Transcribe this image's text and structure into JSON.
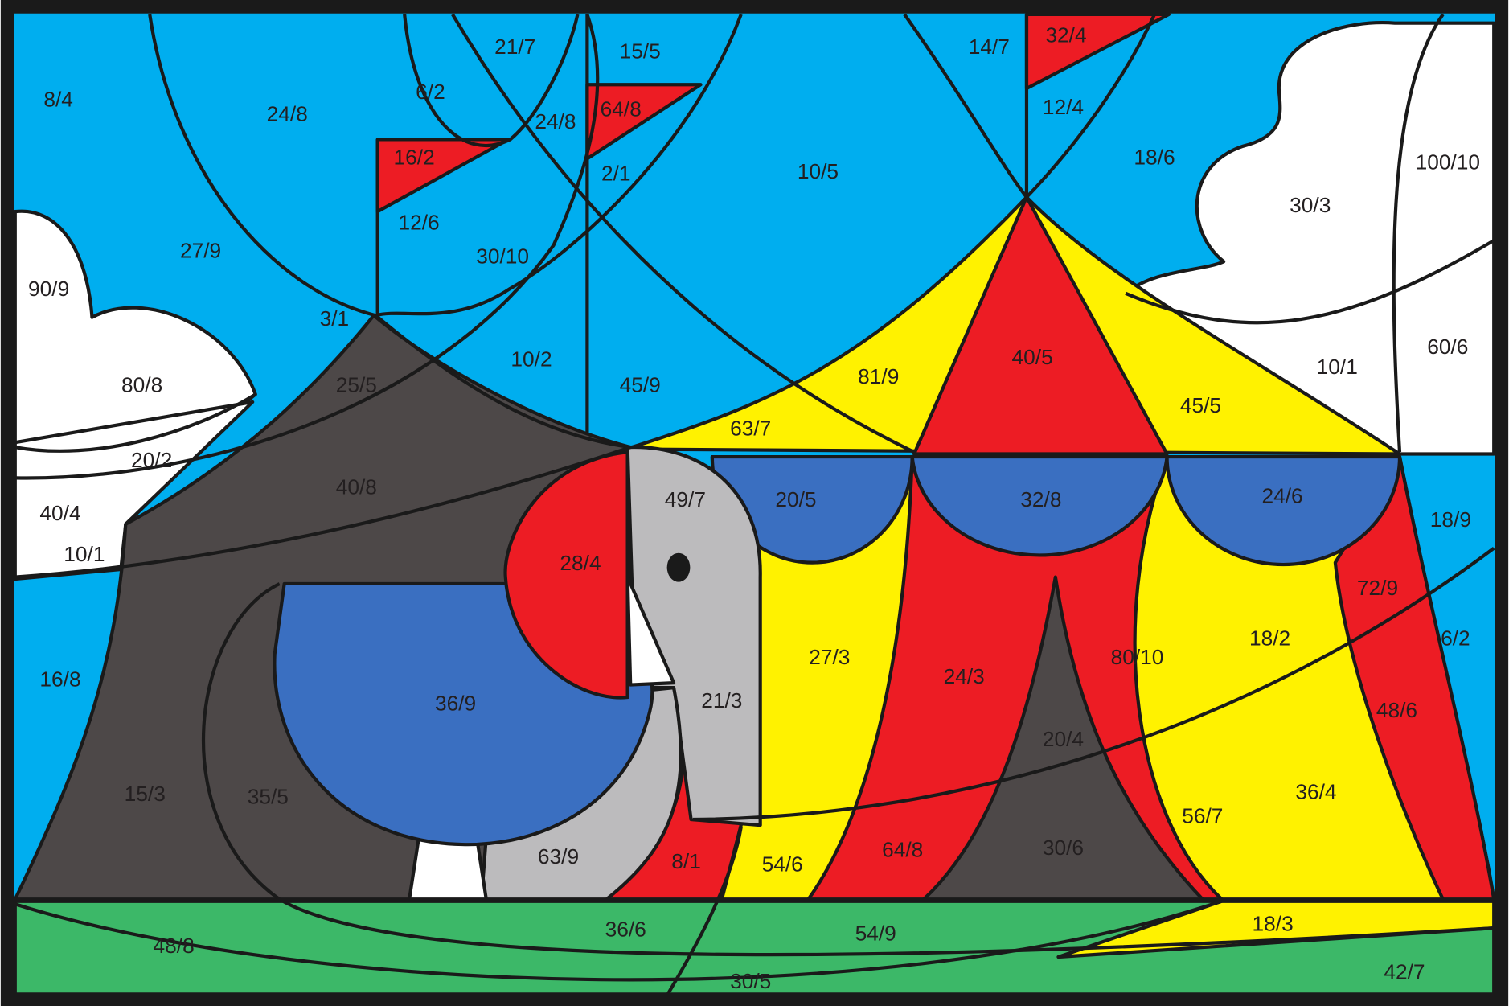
{
  "labels": [
    "8/4",
    "24/8",
    "6/2",
    "21/7",
    "15/5",
    "14/7",
    "32/4",
    "12/4",
    "24/8",
    "64/8",
    "16/2",
    "18/6",
    "100/10",
    "10/5",
    "2/1",
    "12/6",
    "30/3",
    "27/9",
    "30/10",
    "90/9",
    "3/1",
    "60/6",
    "40/5",
    "10/1",
    "10/2",
    "81/9",
    "80/8",
    "25/5",
    "45/9",
    "45/5",
    "63/7",
    "20/2",
    "40/8",
    "40/4",
    "49/7",
    "20/5",
    "32/8",
    "24/6",
    "18/9",
    "10/1",
    "28/4",
    "72/9",
    "18/2",
    "6/2",
    "27/3",
    "80/10",
    "24/3",
    "16/8",
    "36/9",
    "21/3",
    "48/6",
    "20/4",
    "36/4",
    "15/3",
    "35/5",
    "56/7",
    "30/6",
    "64/8",
    "63/9",
    "8/1",
    "54/6",
    "18/3",
    "36/6",
    "54/9",
    "48/8",
    "42/7",
    "30/5"
  ]
}
